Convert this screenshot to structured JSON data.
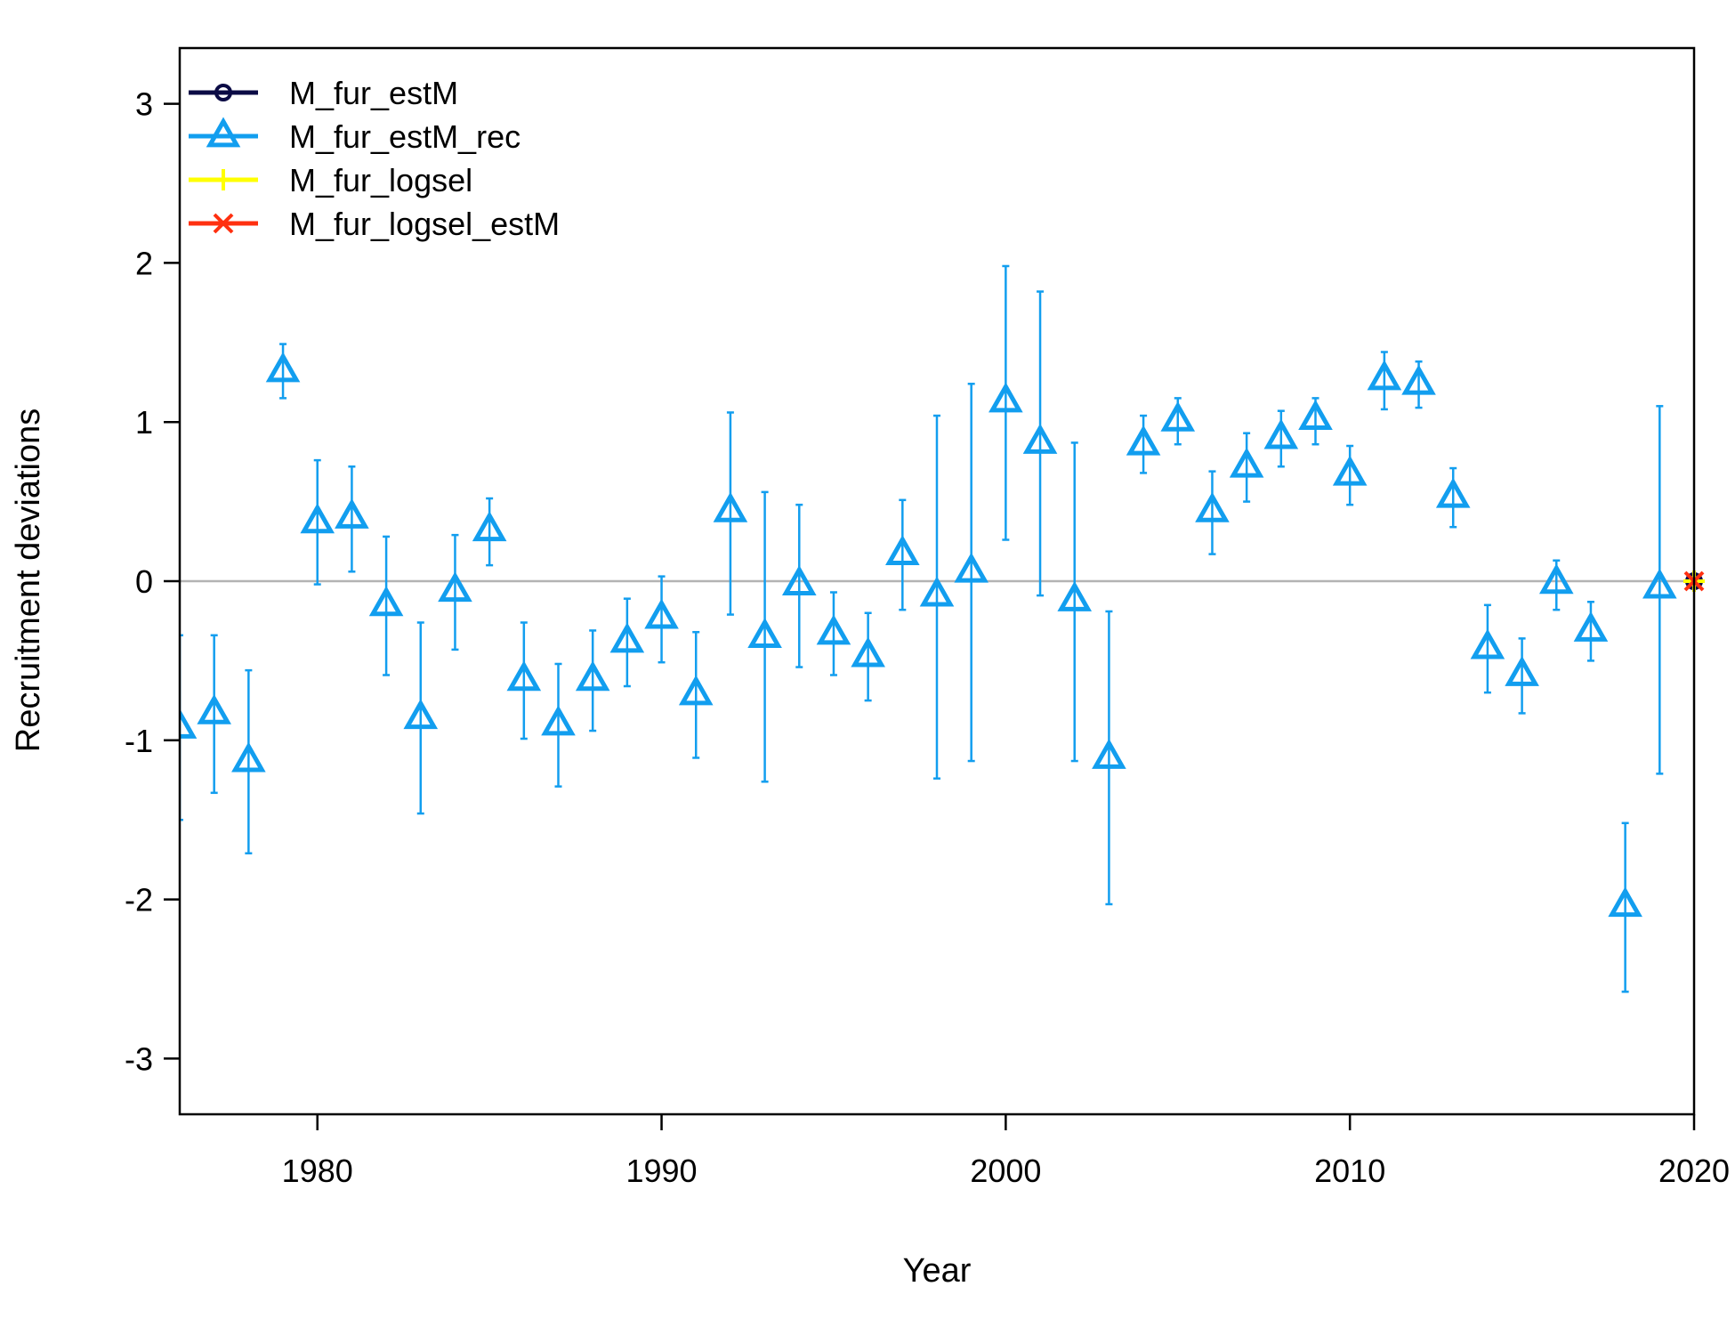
{
  "chart_data": {
    "type": "scatter",
    "title": "",
    "xlabel": "Year",
    "ylabel": "Recruitment deviations",
    "xlim": [
      1976,
      2020
    ],
    "ylim": [
      -3.35,
      3.35
    ],
    "xticks": [
      1980,
      1990,
      2000,
      2010,
      2020
    ],
    "yticks": [
      -3,
      -2,
      -1,
      0,
      1,
      2,
      3
    ],
    "reference_line_y": 0,
    "grid": false,
    "legend_position": "top-left",
    "legend": [
      {
        "label": "M_fur_estM",
        "color": "#0b0b45",
        "marker": "circle"
      },
      {
        "label": "M_fur_estM_rec",
        "color": "#129eef",
        "marker": "triangle"
      },
      {
        "label": "M_fur_logsel",
        "color": "#ffff00",
        "marker": "plus"
      },
      {
        "label": "M_fur_logsel_estM",
        "color": "#ff3010",
        "marker": "cross"
      }
    ],
    "series": [
      {
        "name": "M_fur_estM_rec",
        "color": "#129eef",
        "marker": "triangle",
        "x": [
          1976,
          1977,
          1978,
          1979,
          1980,
          1981,
          1982,
          1983,
          1984,
          1985,
          1986,
          1987,
          1988,
          1989,
          1990,
          1991,
          1992,
          1993,
          1994,
          1995,
          1996,
          1997,
          1998,
          1999,
          2000,
          2001,
          2002,
          2003,
          2004,
          2005,
          2006,
          2007,
          2008,
          2009,
          2010,
          2011,
          2012,
          2013,
          2014,
          2015,
          2016,
          2017,
          2018,
          2019
        ],
        "y": [
          -0.92,
          -0.83,
          -1.13,
          1.32,
          0.37,
          0.4,
          -0.15,
          -0.86,
          -0.06,
          0.32,
          -0.62,
          -0.9,
          -0.62,
          -0.38,
          -0.23,
          -0.71,
          0.44,
          -0.35,
          -0.02,
          -0.33,
          -0.47,
          0.17,
          -0.09,
          0.06,
          1.13,
          0.87,
          -0.12,
          -1.11,
          0.86,
          1.01,
          0.44,
          0.72,
          0.9,
          1.02,
          0.67,
          1.27,
          1.24,
          0.53,
          -0.42,
          -0.59,
          -0.01,
          -0.31,
          -2.04,
          -0.04
        ],
        "lower": [
          -1.5,
          -1.33,
          -1.71,
          1.15,
          -0.02,
          0.06,
          -0.59,
          -1.46,
          -0.43,
          0.1,
          -0.99,
          -1.29,
          -0.94,
          -0.66,
          -0.51,
          -1.11,
          -0.21,
          -1.26,
          -0.54,
          -0.59,
          -0.75,
          -0.18,
          -1.24,
          -1.13,
          0.26,
          -0.09,
          -1.13,
          -2.03,
          0.68,
          0.86,
          0.17,
          0.5,
          0.72,
          0.86,
          0.48,
          1.08,
          1.09,
          0.34,
          -0.7,
          -0.83,
          -0.18,
          -0.5,
          -2.58,
          -1.21
        ],
        "upper": [
          -0.34,
          -0.34,
          -0.56,
          1.49,
          0.76,
          0.72,
          0.28,
          -0.26,
          0.29,
          0.52,
          -0.26,
          -0.52,
          -0.31,
          -0.11,
          0.03,
          -0.32,
          1.06,
          0.56,
          0.48,
          -0.07,
          -0.2,
          0.51,
          1.04,
          1.24,
          1.98,
          1.82,
          0.87,
          -0.19,
          1.04,
          1.15,
          0.69,
          0.93,
          1.07,
          1.15,
          0.85,
          1.44,
          1.38,
          0.71,
          -0.15,
          -0.36,
          0.13,
          -0.13,
          -1.52,
          1.1
        ]
      },
      {
        "name": "M_fur_estM",
        "color": "#0b0b45",
        "marker": "circle",
        "x": [
          2020
        ],
        "y": [
          0.0
        ]
      },
      {
        "name": "M_fur_logsel",
        "color": "#ffff00",
        "marker": "plus",
        "x": [
          2020
        ],
        "y": [
          0.0
        ]
      },
      {
        "name": "M_fur_logsel_estM",
        "color": "#ff3010",
        "marker": "cross",
        "x": [
          2020
        ],
        "y": [
          0.0
        ]
      }
    ]
  }
}
